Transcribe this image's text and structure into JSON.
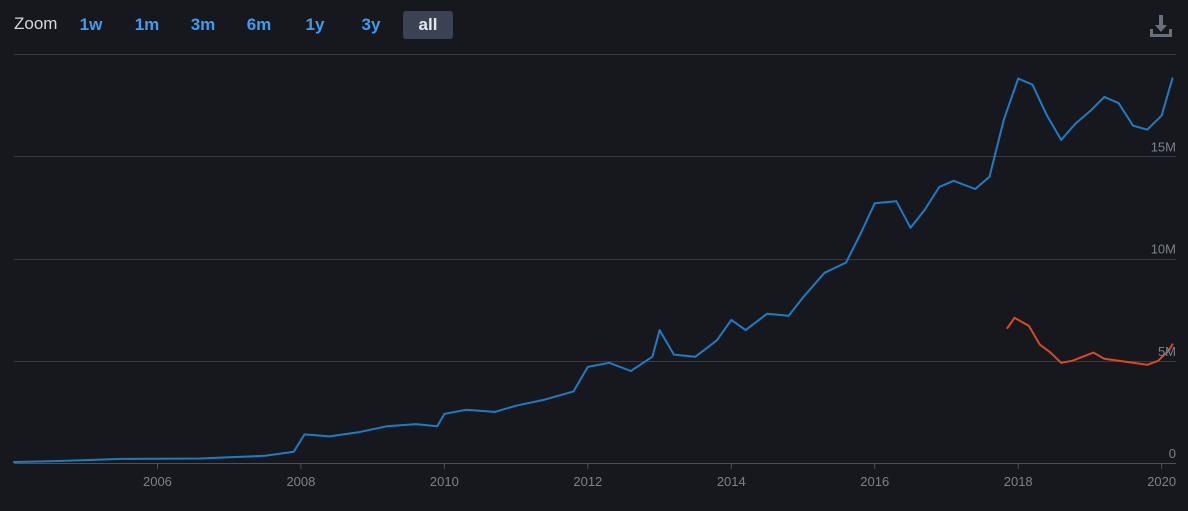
{
  "toolbar": {
    "zoom_label": "Zoom",
    "zoom_buttons": [
      "1w",
      "1m",
      "3m",
      "6m",
      "1y",
      "3y",
      "all"
    ],
    "active_zoom": "all",
    "download_icon": "download-icon"
  },
  "colors": {
    "background": "#16181e",
    "series_1": "#1f7bc4",
    "series_2": "#d94a22",
    "grid": "#353a44",
    "tick_label": "#7b818c",
    "active_button_bg": "#3a4254",
    "button_text": "#3f9cf2"
  },
  "chart_data": {
    "type": "line",
    "title": "",
    "xlabel": "",
    "ylabel": "",
    "x_ticks": [
      "2006",
      "2008",
      "2010",
      "2012",
      "2014",
      "2016",
      "2018",
      "2020"
    ],
    "y_ticks": [
      "0",
      "5M",
      "10M",
      "15M"
    ],
    "xlim": [
      2004.0,
      2020.2
    ],
    "ylim": [
      0,
      20000000
    ],
    "grid": true,
    "series": [
      {
        "color": "#1f7bc4",
        "points": [
          [
            2004.0,
            50000
          ],
          [
            2004.5,
            90000
          ],
          [
            2005.0,
            140000
          ],
          [
            2005.5,
            200000
          ],
          [
            2006.0,
            210000
          ],
          [
            2006.6,
            220000
          ],
          [
            2007.0,
            280000
          ],
          [
            2007.5,
            350000
          ],
          [
            2007.9,
            550000
          ],
          [
            2008.05,
            1400000
          ],
          [
            2008.4,
            1300000
          ],
          [
            2008.8,
            1500000
          ],
          [
            2009.2,
            1800000
          ],
          [
            2009.6,
            1900000
          ],
          [
            2009.9,
            1800000
          ],
          [
            2010.0,
            2400000
          ],
          [
            2010.3,
            2600000
          ],
          [
            2010.7,
            2500000
          ],
          [
            2011.0,
            2800000
          ],
          [
            2011.4,
            3100000
          ],
          [
            2011.8,
            3500000
          ],
          [
            2012.0,
            4700000
          ],
          [
            2012.3,
            4900000
          ],
          [
            2012.6,
            4500000
          ],
          [
            2012.9,
            5200000
          ],
          [
            2013.0,
            6500000
          ],
          [
            2013.2,
            5300000
          ],
          [
            2013.5,
            5200000
          ],
          [
            2013.8,
            6000000
          ],
          [
            2014.0,
            7000000
          ],
          [
            2014.2,
            6500000
          ],
          [
            2014.5,
            7300000
          ],
          [
            2014.8,
            7200000
          ],
          [
            2015.0,
            8100000
          ],
          [
            2015.3,
            9300000
          ],
          [
            2015.6,
            9800000
          ],
          [
            2015.8,
            11200000
          ],
          [
            2016.0,
            12700000
          ],
          [
            2016.3,
            12800000
          ],
          [
            2016.5,
            11500000
          ],
          [
            2016.7,
            12400000
          ],
          [
            2016.9,
            13500000
          ],
          [
            2017.1,
            13800000
          ],
          [
            2017.4,
            13400000
          ],
          [
            2017.6,
            14000000
          ],
          [
            2017.8,
            16800000
          ],
          [
            2018.0,
            18800000
          ],
          [
            2018.2,
            18500000
          ],
          [
            2018.4,
            17000000
          ],
          [
            2018.6,
            15800000
          ],
          [
            2018.8,
            16600000
          ],
          [
            2019.0,
            17200000
          ],
          [
            2019.2,
            17900000
          ],
          [
            2019.4,
            17600000
          ],
          [
            2019.6,
            16500000
          ],
          [
            2019.8,
            16300000
          ],
          [
            2020.0,
            17000000
          ],
          [
            2020.15,
            18800000
          ]
        ]
      },
      {
        "color": "#d94a22",
        "points": [
          [
            2017.85,
            6600000
          ],
          [
            2017.95,
            7100000
          ],
          [
            2018.05,
            6900000
          ],
          [
            2018.15,
            6700000
          ],
          [
            2018.3,
            5800000
          ],
          [
            2018.45,
            5400000
          ],
          [
            2018.6,
            4900000
          ],
          [
            2018.75,
            5000000
          ],
          [
            2018.9,
            5200000
          ],
          [
            2019.05,
            5400000
          ],
          [
            2019.2,
            5100000
          ],
          [
            2019.4,
            5000000
          ],
          [
            2019.6,
            4900000
          ],
          [
            2019.8,
            4800000
          ],
          [
            2019.95,
            5000000
          ],
          [
            2020.1,
            5500000
          ],
          [
            2020.15,
            5800000
          ]
        ]
      }
    ]
  }
}
